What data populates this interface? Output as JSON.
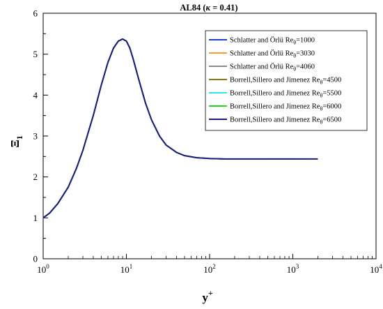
{
  "chart_data": {
    "type": "line",
    "title": "AL84 (κ = 0.41)",
    "title_main": "AL84 (",
    "title_kappa": "κ",
    "title_rest": " = 0.41)",
    "xlabel": "y",
    "xlabel_sup": "+",
    "ylabel": "Ξ",
    "ylabel_sub": "1",
    "x_scale": "log",
    "xlim": [
      1,
      10000
    ],
    "ylim": [
      0,
      6
    ],
    "x_ticks": [
      {
        "value": 1,
        "base": "10",
        "exp": "0"
      },
      {
        "value": 10,
        "base": "10",
        "exp": "1"
      },
      {
        "value": 100,
        "base": "10",
        "exp": "2"
      },
      {
        "value": 1000,
        "base": "10",
        "exp": "3"
      },
      {
        "value": 10000,
        "base": "10",
        "exp": "4"
      }
    ],
    "y_ticks": [
      0,
      1,
      2,
      3,
      4,
      5,
      6
    ],
    "grid": false,
    "legend_position": "top-right",
    "x": [
      1,
      1.2,
      1.5,
      2,
      2.5,
      3,
      4,
      5,
      6,
      7,
      8,
      9,
      10,
      11,
      12,
      14,
      17,
      20,
      25,
      30,
      40,
      50,
      70,
      100,
      150,
      200,
      300,
      500,
      700,
      1000,
      1500,
      2000
    ],
    "series": [
      {
        "name_main": "Schlatter and Örlü Re",
        "name_sub": "θ",
        "name_tail": "=1000",
        "color": "#1f3fd6",
        "x_max": 500
      },
      {
        "name_main": "Schlatter and Örlü Re",
        "name_sub": "θ",
        "name_tail": "=3030",
        "color": "#ff9a2e",
        "x_max": 1000
      },
      {
        "name_main": "Schlatter and Örlü Re",
        "name_sub": "θ",
        "name_tail": "=4060",
        "color": "#8a8a8a",
        "x_max": 1200
      },
      {
        "name_main": "Borrell,Sillero and Jimenez Re",
        "name_sub": "θ",
        "name_tail": "=4500",
        "color": "#8a7a10",
        "x_max": 1300
      },
      {
        "name_main": "Borrell,Sillero and Jimenez Re",
        "name_sub": "θ",
        "name_tail": "=5500",
        "color": "#2ee8f0",
        "x_max": 1500
      },
      {
        "name_main": "Borrell,Sillero and Jimenez Re",
        "name_sub": "θ",
        "name_tail": "=6000",
        "color": "#22d622",
        "x_max": 1800
      },
      {
        "name_main": "Borrell,Sillero and Jimenez Re",
        "name_sub": "θ",
        "name_tail": "=6500",
        "color": "#1a1a80",
        "x_max": 2000
      }
    ],
    "y": [
      1.0,
      1.12,
      1.35,
      1.75,
      2.2,
      2.65,
      3.5,
      4.25,
      4.8,
      5.15,
      5.32,
      5.37,
      5.32,
      5.15,
      4.9,
      4.4,
      3.8,
      3.4,
      3.0,
      2.78,
      2.6,
      2.52,
      2.47,
      2.45,
      2.44,
      2.44,
      2.44,
      2.44,
      2.44,
      2.44,
      2.44,
      2.44
    ]
  }
}
